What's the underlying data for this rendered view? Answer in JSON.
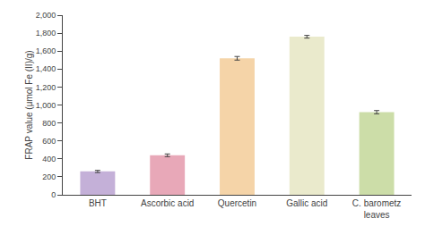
{
  "chart_data": {
    "type": "bar",
    "categories": [
      "BHT",
      "Ascorbic acid",
      "Quercetin",
      "Gallic acid",
      "C. barometz\nleaves"
    ],
    "values": [
      260,
      440,
      1520,
      1760,
      920
    ],
    "errors": [
      12,
      15,
      20,
      15,
      18
    ],
    "colors": [
      "#c4b0d8",
      "#e8a8b8",
      "#f5d4a8",
      "#eaeacc",
      "#ccdda8"
    ],
    "ylabel": "FRAP value (μmol Fe (II)/g)",
    "ylim": [
      0,
      2000
    ],
    "yticks": [
      0,
      200,
      400,
      600,
      800,
      {
        "value": 1000,
        "label": "1,000"
      },
      {
        "value": 1200,
        "label": "1,200"
      },
      {
        "value": 1400,
        "label": "1,400"
      },
      {
        "value": 1600,
        "label": "1,600"
      },
      {
        "value": 1800,
        "label": "1,800"
      },
      {
        "value": 2000,
        "label": "2,000"
      }
    ],
    "grid": false
  }
}
